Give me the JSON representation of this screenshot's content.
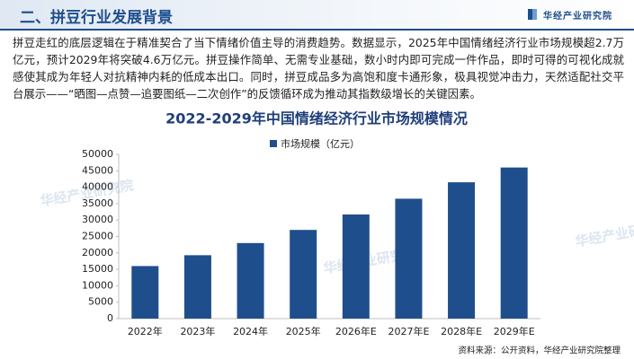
{
  "header": {
    "title": "二、拼豆行业发展背景",
    "brand": "华经产业研究院"
  },
  "paragraph": "拼豆走红的底层逻辑在于精准契合了当下情绪价值主导的消费趋势。数据显示，2025年中国情绪经济行业市场规模超2.7万亿元，预计2029年将突破4.6万亿元。拼豆操作简单、无需专业基础，数小时内即可完成一件作品，即时可得的可视化成就感使其成为年轻人对抗精神内耗的低成本出口。同时，拼豆成品多为高饱和度卡通形象，极具视觉冲击力，天然适配社交平台展示——“晒图—点赞—追要图纸—二次创作”的反馈循环成为推动其指数级增长的关键因素。",
  "watermark": "华经产业研究院",
  "chart_data": {
    "type": "bar",
    "title": "2022-2029年中国情绪经济行业市场规模情况",
    "categories": [
      "2022年",
      "2023年",
      "2024年",
      "2025年",
      "2026年E",
      "2027年E",
      "2028年E",
      "2029年E"
    ],
    "series": [
      {
        "name": "市场规模（亿元）",
        "color": "#1f4e8c",
        "values": [
          16000,
          19300,
          23000,
          27000,
          31700,
          36500,
          41500,
          46000
        ]
      }
    ],
    "ylim": [
      0,
      50000
    ],
    "yticks": [
      0,
      5000,
      10000,
      15000,
      20000,
      25000,
      30000,
      35000,
      40000,
      45000,
      50000
    ],
    "grid": false,
    "legend": "top"
  },
  "source": "资料来源：公开资料，华经产业研究院整理"
}
